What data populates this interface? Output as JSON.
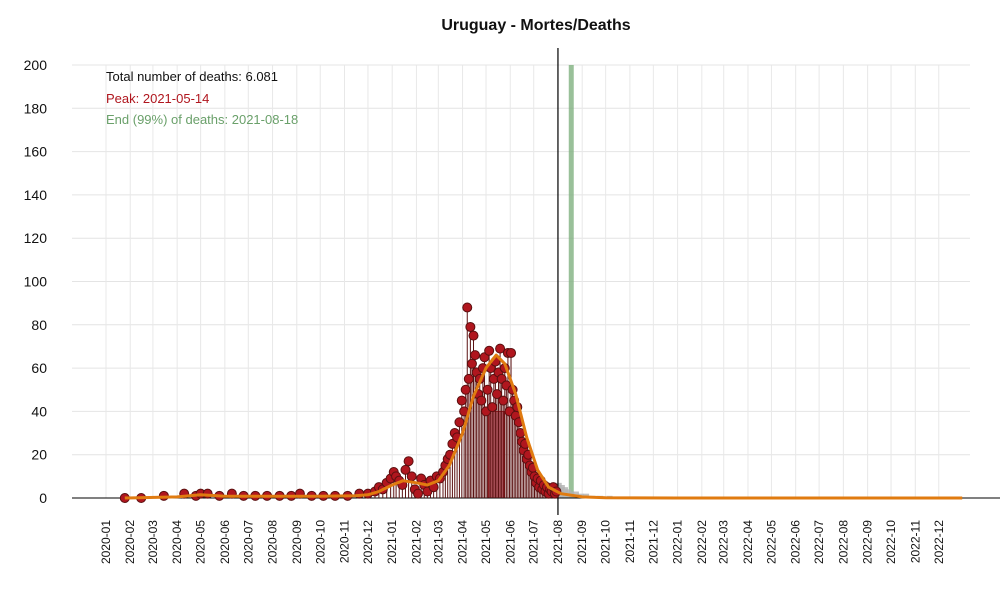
{
  "chart_data": {
    "type": "scatter",
    "title": "Uruguay - Mortes/Deaths",
    "xlabel": "",
    "ylabel": "",
    "ylim": [
      0,
      200
    ],
    "xlim": [
      "2020-01",
      "2023-01"
    ],
    "yticks": [
      0,
      20,
      40,
      60,
      80,
      100,
      120,
      140,
      160,
      180,
      200
    ],
    "xticks": [
      "2020-01",
      "2020-02",
      "2020-03",
      "2020-04",
      "2020-05",
      "2020-06",
      "2020-07",
      "2020-08",
      "2020-09",
      "2020-10",
      "2020-11",
      "2020-12",
      "2021-01",
      "2021-02",
      "2021-03",
      "2021-04",
      "2021-05",
      "2021-06",
      "2021-07",
      "2021-08",
      "2021-09",
      "2021-10",
      "2021-11",
      "2021-12",
      "2022-01",
      "2022-02",
      "2022-03",
      "2022-04",
      "2022-05",
      "2022-06",
      "2022-07",
      "2022-08",
      "2022-09",
      "2022-10",
      "2022-11",
      "2022-12"
    ],
    "grid": true,
    "annotations": {
      "total": "Total number of deaths: 6.081",
      "peak": "Peak: 2021-05-14",
      "end": "End (99%) of deaths: 2021-08-18"
    },
    "colors": {
      "points": "#b0161e",
      "points_edge": "#5a1010",
      "fit_line": "#e07b10",
      "peak_band": "#d05060",
      "end_line": "#7fb07f",
      "forecast": "#b0b0b0",
      "peak_text": "#b0161e",
      "end_text": "#6aa06a"
    },
    "peak_date": "2021-05-14",
    "end_date": "2021-08-18",
    "today_line": "2021-08-01",
    "observed_daily_deaths": [
      {
        "x": "2020-01-25",
        "y": 0
      },
      {
        "x": "2020-02-15",
        "y": 0
      },
      {
        "x": "2020-03-15",
        "y": 1
      },
      {
        "x": "2020-04-10",
        "y": 2
      },
      {
        "x": "2020-04-25",
        "y": 1
      },
      {
        "x": "2020-05-01",
        "y": 2
      },
      {
        "x": "2020-05-10",
        "y": 2
      },
      {
        "x": "2020-05-25",
        "y": 1
      },
      {
        "x": "2020-06-10",
        "y": 2
      },
      {
        "x": "2020-06-25",
        "y": 1
      },
      {
        "x": "2020-07-10",
        "y": 1
      },
      {
        "x": "2020-07-25",
        "y": 1
      },
      {
        "x": "2020-08-10",
        "y": 1
      },
      {
        "x": "2020-08-25",
        "y": 1
      },
      {
        "x": "2020-09-05",
        "y": 2
      },
      {
        "x": "2020-09-20",
        "y": 1
      },
      {
        "x": "2020-10-05",
        "y": 1
      },
      {
        "x": "2020-10-20",
        "y": 1
      },
      {
        "x": "2020-11-05",
        "y": 1
      },
      {
        "x": "2020-11-20",
        "y": 2
      },
      {
        "x": "2020-12-01",
        "y": 2
      },
      {
        "x": "2020-12-10",
        "y": 3
      },
      {
        "x": "2020-12-15",
        "y": 5
      },
      {
        "x": "2020-12-20",
        "y": 4
      },
      {
        "x": "2020-12-25",
        "y": 7
      },
      {
        "x": "2020-12-30",
        "y": 9
      },
      {
        "x": "2021-01-03",
        "y": 12
      },
      {
        "x": "2021-01-06",
        "y": 10
      },
      {
        "x": "2021-01-10",
        "y": 8
      },
      {
        "x": "2021-01-14",
        "y": 6
      },
      {
        "x": "2021-01-18",
        "y": 13
      },
      {
        "x": "2021-01-22",
        "y": 17
      },
      {
        "x": "2021-01-26",
        "y": 10
      },
      {
        "x": "2021-01-30",
        "y": 4
      },
      {
        "x": "2021-02-03",
        "y": 2
      },
      {
        "x": "2021-02-07",
        "y": 9
      },
      {
        "x": "2021-02-11",
        "y": 6
      },
      {
        "x": "2021-02-15",
        "y": 3
      },
      {
        "x": "2021-02-19",
        "y": 8
      },
      {
        "x": "2021-02-23",
        "y": 5
      },
      {
        "x": "2021-02-27",
        "y": 10
      },
      {
        "x": "2021-03-03",
        "y": 9
      },
      {
        "x": "2021-03-07",
        "y": 12
      },
      {
        "x": "2021-03-10",
        "y": 15
      },
      {
        "x": "2021-03-13",
        "y": 18
      },
      {
        "x": "2021-03-16",
        "y": 20
      },
      {
        "x": "2021-03-19",
        "y": 25
      },
      {
        "x": "2021-03-22",
        "y": 30
      },
      {
        "x": "2021-03-25",
        "y": 28
      },
      {
        "x": "2021-03-28",
        "y": 35
      },
      {
        "x": "2021-03-31",
        "y": 45
      },
      {
        "x": "2021-04-03",
        "y": 40
      },
      {
        "x": "2021-04-05",
        "y": 50
      },
      {
        "x": "2021-04-07",
        "y": 88
      },
      {
        "x": "2021-04-09",
        "y": 55
      },
      {
        "x": "2021-04-11",
        "y": 79
      },
      {
        "x": "2021-04-13",
        "y": 62
      },
      {
        "x": "2021-04-15",
        "y": 75
      },
      {
        "x": "2021-04-17",
        "y": 66
      },
      {
        "x": "2021-04-19",
        "y": 58
      },
      {
        "x": "2021-04-21",
        "y": 48
      },
      {
        "x": "2021-04-23",
        "y": 55
      },
      {
        "x": "2021-04-25",
        "y": 45
      },
      {
        "x": "2021-04-27",
        "y": 60
      },
      {
        "x": "2021-04-29",
        "y": 65
      },
      {
        "x": "2021-05-01",
        "y": 40
      },
      {
        "x": "2021-05-03",
        "y": 50
      },
      {
        "x": "2021-05-05",
        "y": 68
      },
      {
        "x": "2021-05-07",
        "y": 60
      },
      {
        "x": "2021-05-09",
        "y": 42
      },
      {
        "x": "2021-05-11",
        "y": 55
      },
      {
        "x": "2021-05-13",
        "y": 63
      },
      {
        "x": "2021-05-15",
        "y": 48
      },
      {
        "x": "2021-05-17",
        "y": 58
      },
      {
        "x": "2021-05-19",
        "y": 69
      },
      {
        "x": "2021-05-21",
        "y": 55
      },
      {
        "x": "2021-05-23",
        "y": 45
      },
      {
        "x": "2021-05-25",
        "y": 60
      },
      {
        "x": "2021-05-27",
        "y": 52
      },
      {
        "x": "2021-05-29",
        "y": 67
      },
      {
        "x": "2021-05-31",
        "y": 40
      },
      {
        "x": "2021-06-02",
        "y": 67
      },
      {
        "x": "2021-06-04",
        "y": 50
      },
      {
        "x": "2021-06-06",
        "y": 45
      },
      {
        "x": "2021-06-08",
        "y": 38
      },
      {
        "x": "2021-06-10",
        "y": 42
      },
      {
        "x": "2021-06-12",
        "y": 35
      },
      {
        "x": "2021-06-14",
        "y": 30
      },
      {
        "x": "2021-06-16",
        "y": 26
      },
      {
        "x": "2021-06-18",
        "y": 22
      },
      {
        "x": "2021-06-20",
        "y": 25
      },
      {
        "x": "2021-06-22",
        "y": 18
      },
      {
        "x": "2021-06-24",
        "y": 20
      },
      {
        "x": "2021-06-26",
        "y": 15
      },
      {
        "x": "2021-06-28",
        "y": 12
      },
      {
        "x": "2021-06-30",
        "y": 14
      },
      {
        "x": "2021-07-02",
        "y": 10
      },
      {
        "x": "2021-07-04",
        "y": 7
      },
      {
        "x": "2021-07-06",
        "y": 9
      },
      {
        "x": "2021-07-08",
        "y": 5
      },
      {
        "x": "2021-07-10",
        "y": 8
      },
      {
        "x": "2021-07-12",
        "y": 4
      },
      {
        "x": "2021-07-14",
        "y": 6
      },
      {
        "x": "2021-07-16",
        "y": 3
      },
      {
        "x": "2021-07-18",
        "y": 5
      },
      {
        "x": "2021-07-20",
        "y": 2
      },
      {
        "x": "2021-07-22",
        "y": 4
      },
      {
        "x": "2021-07-24",
        "y": 3
      },
      {
        "x": "2021-07-26",
        "y": 5
      },
      {
        "x": "2021-07-28",
        "y": 2
      },
      {
        "x": "2021-07-30",
        "y": 3
      }
    ],
    "fitted_curve": [
      {
        "x": "2020-01-25",
        "y": 0
      },
      {
        "x": "2020-04-01",
        "y": 0.5
      },
      {
        "x": "2020-05-01",
        "y": 1.5
      },
      {
        "x": "2020-06-01",
        "y": 0.8
      },
      {
        "x": "2020-08-01",
        "y": 0.8
      },
      {
        "x": "2020-10-01",
        "y": 0.8
      },
      {
        "x": "2020-11-15",
        "y": 1
      },
      {
        "x": "2020-12-01",
        "y": 1.5
      },
      {
        "x": "2020-12-15",
        "y": 3
      },
      {
        "x": "2021-01-01",
        "y": 6
      },
      {
        "x": "2021-01-15",
        "y": 8
      },
      {
        "x": "2021-02-01",
        "y": 7
      },
      {
        "x": "2021-02-15",
        "y": 6
      },
      {
        "x": "2021-03-01",
        "y": 8
      },
      {
        "x": "2021-03-15",
        "y": 15
      },
      {
        "x": "2021-04-01",
        "y": 30
      },
      {
        "x": "2021-04-15",
        "y": 47
      },
      {
        "x": "2021-05-01",
        "y": 60
      },
      {
        "x": "2021-05-14",
        "y": 66
      },
      {
        "x": "2021-05-25",
        "y": 62
      },
      {
        "x": "2021-06-08",
        "y": 48
      },
      {
        "x": "2021-06-22",
        "y": 28
      },
      {
        "x": "2021-07-06",
        "y": 13
      },
      {
        "x": "2021-07-20",
        "y": 5
      },
      {
        "x": "2021-08-05",
        "y": 2
      },
      {
        "x": "2021-09-01",
        "y": 0.5
      },
      {
        "x": "2021-10-01",
        "y": 0.1
      },
      {
        "x": "2022-01-01",
        "y": 0
      },
      {
        "x": "2022-12-31",
        "y": 0
      }
    ],
    "forecast_bars": [
      {
        "x": "2021-08-02",
        "y": 7
      },
      {
        "x": "2021-08-06",
        "y": 6
      },
      {
        "x": "2021-08-10",
        "y": 5
      },
      {
        "x": "2021-08-14",
        "y": 4
      },
      {
        "x": "2021-08-18",
        "y": 3
      },
      {
        "x": "2021-08-24",
        "y": 3
      },
      {
        "x": "2021-08-30",
        "y": 2
      },
      {
        "x": "2021-09-06",
        "y": 2
      },
      {
        "x": "2021-09-14",
        "y": 1
      },
      {
        "x": "2021-09-24",
        "y": 1
      },
      {
        "x": "2021-10-06",
        "y": 1
      },
      {
        "x": "2021-10-20",
        "y": 0.5
      },
      {
        "x": "2021-11-05",
        "y": 0.5
      },
      {
        "x": "2021-11-25",
        "y": 0.3
      }
    ]
  }
}
